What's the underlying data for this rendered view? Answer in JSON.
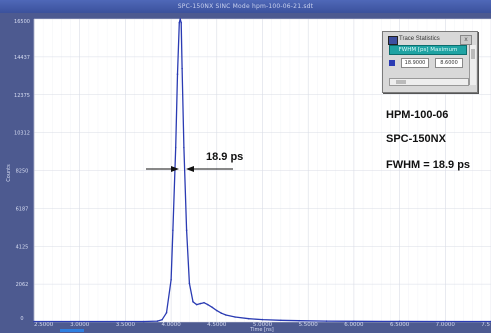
{
  "window": {
    "title": "SPC-150NX  SINC Mode  hpm-100-06-21.sdt"
  },
  "trace_statistics": {
    "title": "Trace Statistics",
    "header": "FWHM [ps]    Maximum",
    "row_values": [
      "18.9000",
      "8.6000"
    ],
    "close_label": "x"
  },
  "annotations": {
    "marker_label": "18.9 ps",
    "info_lines": [
      "HPM-100-06",
      "SPC-150NX",
      "FWHM = 18.9 ps"
    ]
  },
  "colors": {
    "plot_background": "#ffffff",
    "frame": "#4d5a90",
    "curve": "#2a3bb3",
    "grid": "#d9dce6"
  },
  "chart_data": {
    "type": "line",
    "xlabel": "Time [ns]",
    "ylabel": "Counts",
    "xlim": [
      2.5,
      7.5
    ],
    "ylim": [
      0,
      16500
    ],
    "x_tick_values": [
      2.5,
      3.0,
      3.5,
      4.0,
      4.5,
      5.0,
      5.5,
      6.0,
      6.5,
      7.0,
      7.5
    ],
    "x_tick_labels": [
      "2.5000",
      "3.0000",
      "3.5000",
      "4.0000",
      "4.5000",
      "5.0000",
      "5.5000",
      "6.0000",
      "6.5000",
      "7.0000",
      "7.5"
    ],
    "y_tick_values": [
      0,
      2062,
      4125,
      6187,
      8250,
      10312,
      12375,
      14437,
      16500
    ],
    "y_tick_labels": [
      "0",
      "2062",
      "4125",
      "6187",
      "8250",
      "10312",
      "12375",
      "14437",
      "16500"
    ],
    "grid": true,
    "series": [
      {
        "x": [
          2.5,
          3.7,
          3.85,
          3.9,
          3.95,
          4.0,
          4.02,
          4.05,
          4.07,
          4.09,
          4.1,
          4.11,
          4.12,
          4.14,
          4.17,
          4.2,
          4.24,
          4.28,
          4.32,
          4.36,
          4.4,
          4.45,
          4.5,
          4.55,
          4.6,
          4.7,
          4.85,
          5.0,
          5.2,
          5.4,
          5.7,
          6.0,
          6.5,
          7.0,
          7.5
        ],
        "y": [
          25,
          25,
          50,
          120,
          500,
          2300,
          5000,
          9500,
          13500,
          16300,
          16500,
          16300,
          13800,
          9500,
          5000,
          2100,
          1100,
          950,
          1000,
          1050,
          950,
          800,
          620,
          480,
          380,
          270,
          180,
          130,
          90,
          70,
          50,
          40,
          30,
          25,
          25
        ]
      }
    ]
  }
}
